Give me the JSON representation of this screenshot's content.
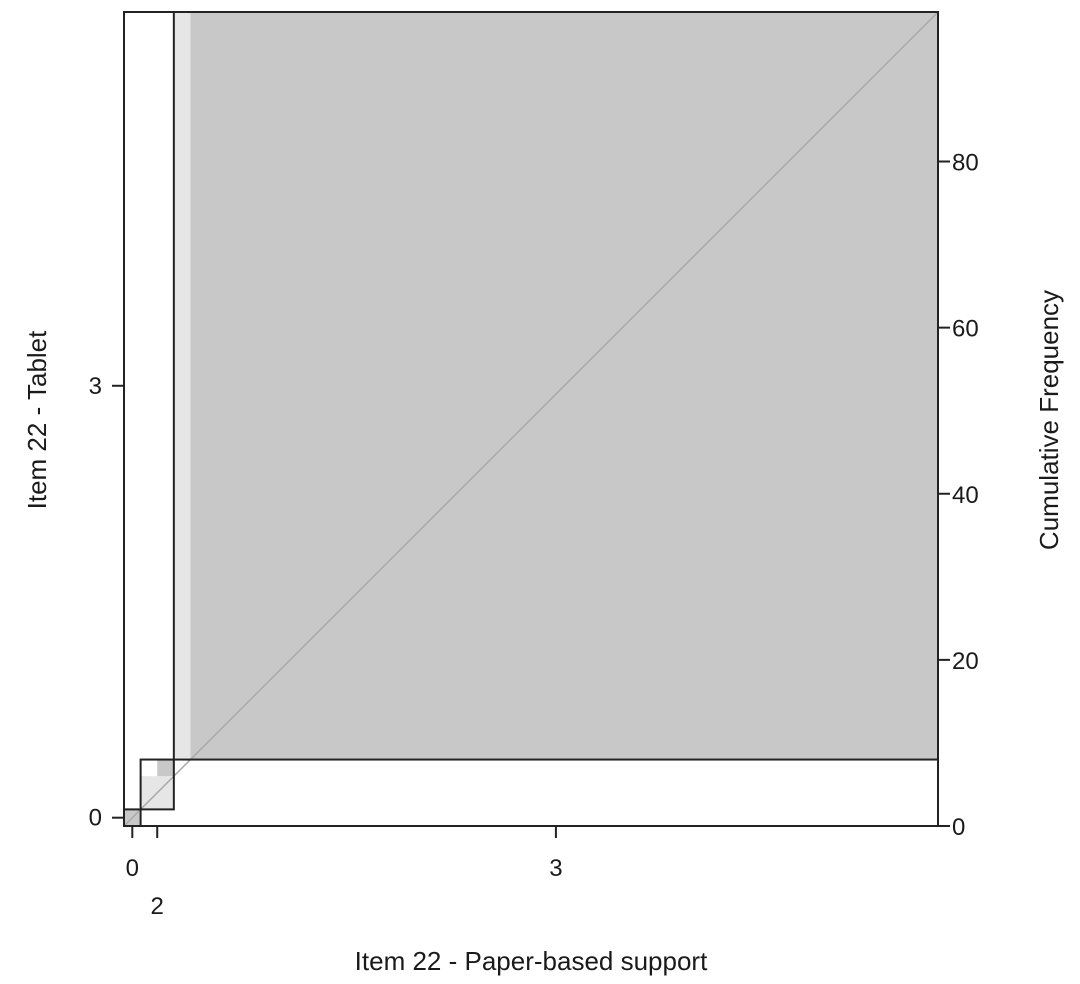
{
  "chart_data": {
    "type": "agreement-chart",
    "xlabel": "Item 22 - Paper-based support",
    "ylabel": "Item 22 - Tablet",
    "y2label": "Cumulative Frequency",
    "total": 98,
    "x_categories": [
      "0",
      "2",
      "3"
    ],
    "y_categories": [
      "0",
      "2",
      "3"
    ],
    "x_tick_labels": [
      {
        "category": "0",
        "label": "0"
      },
      {
        "category": "2",
        "label": "2"
      },
      {
        "category": "3",
        "label": "3"
      }
    ],
    "y_tick_labels": [
      {
        "category": "0",
        "label": "0"
      },
      {
        "category": "3",
        "label": "3"
      }
    ],
    "x_cumulative": [
      2,
      6,
      98
    ],
    "y_cumulative": [
      2,
      8,
      98
    ],
    "blocks": [
      {
        "category": "0",
        "exact": 2,
        "partial": 2
      },
      {
        "category": "2",
        "exact": 2,
        "partial": 4
      },
      {
        "category": "3",
        "exact": 90,
        "partial": 90
      }
    ],
    "y2_ticks": [
      0,
      20,
      40,
      60,
      80
    ],
    "diagonal_reference": true,
    "colors": {
      "exact": "#c8c8c8",
      "partial": "#e6e6e6",
      "diagonal": "#a8a8a8",
      "frame": "#222222"
    }
  }
}
